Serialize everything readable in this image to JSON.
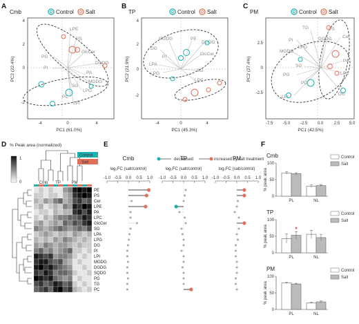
{
  "panel_letters": [
    "A",
    "B",
    "C",
    "D",
    "E",
    "F"
  ],
  "legend": {
    "control": "Control",
    "salt": "Salt"
  },
  "colors": {
    "control": "#1ab2b0",
    "salt": "#e0705a",
    "loading": "#aaaaaa",
    "heat_dark": "#111111",
    "heat_light": "#ffffff"
  },
  "pca": [
    {
      "title": "Cmb",
      "xlabel": "PC1 (61.0%)",
      "ylabel": "PC2 (22.4%)",
      "xticks": [
        "-4",
        "0",
        "4"
      ],
      "yticks": [
        "-2",
        "0",
        "2",
        "4"
      ],
      "loadings": [
        "LPE",
        "PS",
        "GlcCer",
        "DGDG",
        "PG",
        "PI",
        "PA",
        "MGDG",
        "LPG",
        "SG",
        "PC",
        "LPI"
      ]
    },
    {
      "title": "TP",
      "xlabel": "PC1 (45.3%)",
      "ylabel": "PC2 (21.9%)",
      "xticks": [
        "-4",
        "0",
        "4"
      ],
      "yticks": [
        "-2",
        "0",
        "2",
        "4"
      ],
      "loadings": [
        "MGDG",
        "PE",
        "DGDG",
        "DG",
        "PI",
        "GlcCer",
        "LPA",
        "SG",
        "LPG",
        "LPC"
      ]
    },
    {
      "title": "PM",
      "xlabel": "PC1 (42.5%)",
      "ylabel": "PC2 (27.4%)",
      "xticks": [
        "-7.5",
        "-5.0",
        "-2.5",
        "0.0",
        "2.5",
        "5.0"
      ],
      "yticks": [
        "-2.5",
        "0",
        "2.5"
      ],
      "loadings": [
        "TG",
        "PI",
        "PS",
        "MGDG",
        "LPG",
        "DGDG",
        "Cer",
        "PA",
        "PG",
        "SG",
        "LPC",
        "DG",
        "LPI",
        "PC"
      ]
    }
  ],
  "heatmap": {
    "legend_title": "% Peak area (normalized)",
    "scale_max": "1",
    "scale_min": "0",
    "group_labels": [
      "Cmb",
      "TP",
      "PM"
    ],
    "rows": [
      "PE",
      "PS",
      "Cer",
      "LPE",
      "PA",
      "LPC",
      "GlcCer",
      "SG",
      "LPA",
      "LPG",
      "DG",
      "PI",
      "LPI",
      "MGDG",
      "DGDG",
      "SQDG",
      "PG",
      "TG",
      "PC"
    ],
    "values": [
      [
        0.1,
        0.2,
        0.1,
        0.2,
        0.1,
        0.1,
        0.4,
        0.5,
        0.9,
        1.0,
        0.9,
        1.0
      ],
      [
        0.2,
        0.2,
        0.1,
        0.2,
        0.2,
        0.1,
        0.3,
        0.4,
        0.8,
        0.9,
        1.0,
        0.9
      ],
      [
        0.3,
        0.2,
        0.4,
        0.3,
        0.5,
        0.6,
        0.3,
        0.4,
        0.7,
        0.8,
        0.6,
        0.7
      ],
      [
        0.2,
        0.3,
        0.1,
        0.2,
        0.3,
        0.2,
        0.5,
        0.4,
        0.9,
        0.8,
        1.0,
        0.9
      ],
      [
        0.1,
        0.2,
        0.2,
        0.1,
        0.3,
        0.2,
        0.3,
        0.3,
        0.8,
        0.9,
        0.7,
        0.9
      ],
      [
        0.2,
        0.1,
        0.3,
        0.2,
        0.4,
        0.5,
        0.5,
        0.6,
        0.6,
        0.7,
        0.9,
        0.8
      ],
      [
        0.3,
        0.4,
        0.2,
        0.3,
        0.4,
        0.3,
        0.6,
        0.5,
        0.7,
        0.6,
        0.8,
        0.9
      ],
      [
        0.5,
        0.4,
        0.3,
        0.4,
        0.5,
        0.6,
        0.5,
        0.4,
        0.5,
        0.6,
        0.5,
        0.7
      ],
      [
        0.2,
        0.3,
        0.4,
        0.3,
        0.2,
        0.3,
        0.3,
        0.2,
        0.4,
        0.3,
        0.2,
        0.3
      ],
      [
        0.3,
        0.2,
        0.3,
        0.2,
        0.4,
        0.3,
        0.5,
        0.4,
        0.3,
        0.2,
        0.3,
        0.2
      ],
      [
        0.4,
        0.3,
        0.5,
        0.4,
        0.3,
        0.4,
        0.4,
        0.3,
        0.2,
        0.3,
        0.2,
        0.2
      ],
      [
        0.5,
        0.6,
        0.4,
        0.5,
        0.3,
        0.4,
        0.5,
        0.6,
        0.2,
        0.2,
        0.1,
        0.2
      ],
      [
        0.9,
        0.8,
        0.7,
        0.8,
        0.4,
        0.5,
        0.5,
        0.4,
        0.2,
        0.1,
        0.2,
        0.1
      ],
      [
        0.8,
        0.9,
        0.9,
        0.7,
        0.6,
        0.7,
        0.4,
        0.3,
        0.1,
        0.2,
        0.1,
        0.1
      ],
      [
        0.9,
        1.0,
        0.8,
        0.9,
        0.7,
        0.6,
        0.5,
        0.4,
        0.1,
        0.1,
        0.2,
        0.1
      ],
      [
        0.8,
        0.7,
        0.9,
        0.8,
        0.5,
        0.6,
        0.6,
        0.5,
        0.2,
        0.1,
        0.1,
        0.2
      ],
      [
        1.0,
        0.9,
        0.8,
        0.9,
        0.6,
        0.5,
        0.4,
        0.5,
        0.1,
        0.2,
        0.1,
        0.1
      ],
      [
        0.7,
        0.8,
        0.6,
        0.7,
        0.9,
        0.8,
        0.6,
        0.7,
        0.2,
        0.1,
        0.2,
        0.1
      ],
      [
        0.6,
        0.7,
        0.8,
        0.6,
        0.9,
        1.0,
        0.7,
        0.8,
        0.3,
        0.2,
        0.1,
        0.2
      ]
    ]
  },
  "fc_plot": {
    "legend_decreased": "decreased",
    "legend_increased": "increased by salt treatment",
    "columns": [
      "Cmb",
      "TP",
      "PM"
    ],
    "xlabel": "log₂FC (salt/control)",
    "xticks": [
      "-1.0",
      "-0.5",
      "0.0",
      "0.5",
      "1.0"
    ],
    "chart_data": {
      "type": "scatter",
      "rows": [
        "PE",
        "PS",
        "Cer",
        "LPE",
        "PA",
        "LPC",
        "GlcCer",
        "SG",
        "LPA",
        "LPG",
        "DG",
        "PI",
        "LPI",
        "MGDG",
        "DGDG",
        "SQDG",
        "PG",
        "TG",
        "PC"
      ],
      "series": [
        {
          "name": "Cmb",
          "values": [
            0.95,
            0.85,
            0.15,
            0.8,
            0.1,
            0.1,
            0.4,
            0.1,
            0.05,
            0.02,
            -0.02,
            -0.05,
            -0.05,
            -0.02,
            -0.05,
            -0.05,
            -0.02,
            -0.05,
            -0.05
          ],
          "significant": [
            "salt",
            "salt",
            null,
            "salt",
            null,
            null,
            null,
            null,
            null,
            null,
            null,
            null,
            null,
            null,
            null,
            null,
            null,
            null,
            null
          ]
        },
        {
          "name": "TP",
          "values": [
            0.1,
            0.05,
            0.0,
            -0.35,
            -0.2,
            0.05,
            0.1,
            -0.1,
            -0.05,
            0.0,
            0.0,
            -0.1,
            0.0,
            0.0,
            -0.05,
            0.0,
            0.0,
            0.0,
            0.35
          ],
          "significant": [
            null,
            null,
            null,
            "control",
            null,
            null,
            null,
            null,
            null,
            null,
            null,
            null,
            null,
            null,
            null,
            null,
            null,
            null,
            "salt"
          ]
        },
        {
          "name": "PM",
          "values": [
            0.35,
            0.35,
            0.05,
            0.0,
            -0.1,
            0.1,
            0.35,
            0.1,
            0.0,
            0.05,
            -0.05,
            -0.05,
            -0.05,
            0.0,
            0.0,
            0.0,
            -0.05,
            -0.05,
            0.0
          ],
          "significant": [
            "salt",
            "salt",
            null,
            null,
            null,
            null,
            "salt",
            null,
            null,
            null,
            null,
            null,
            null,
            null,
            null,
            null,
            null,
            null,
            null
          ]
        }
      ]
    }
  },
  "bars": {
    "ylabel": "% peak area",
    "yticks": [
      "0",
      "50",
      "100"
    ],
    "categories": [
      "PL",
      "NL"
    ],
    "chart_data": [
      {
        "type": "bar",
        "title": "Cmb",
        "categories": [
          "PL",
          "NL"
        ],
        "series": [
          {
            "name": "Control",
            "values": [
              70,
              30
            ],
            "err": [
              4,
              4
            ]
          },
          {
            "name": "Salt",
            "values": [
              68,
              32
            ],
            "err": [
              3,
              3
            ]
          }
        ],
        "ylim": [
          0,
          100
        ]
      },
      {
        "type": "bar",
        "title": "TP",
        "categories": [
          "PL",
          "NL"
        ],
        "series": [
          {
            "name": "Control",
            "values": [
              43,
              56
            ],
            "err": [
              14,
              12
            ]
          },
          {
            "name": "Salt",
            "values": [
              53,
              46
            ],
            "err": [
              11,
              10
            ]
          }
        ],
        "ylim": [
          0,
          100
        ],
        "annotation": "*"
      },
      {
        "type": "bar",
        "title": "PM",
        "categories": [
          "PL",
          "NL"
        ],
        "series": [
          {
            "name": "Control",
            "values": [
              80,
              20
            ],
            "err": [
              2,
              2
            ]
          },
          {
            "name": "Salt",
            "values": [
              77,
              23
            ],
            "err": [
              2,
              3
            ]
          }
        ],
        "ylim": [
          0,
          100
        ]
      }
    ]
  }
}
